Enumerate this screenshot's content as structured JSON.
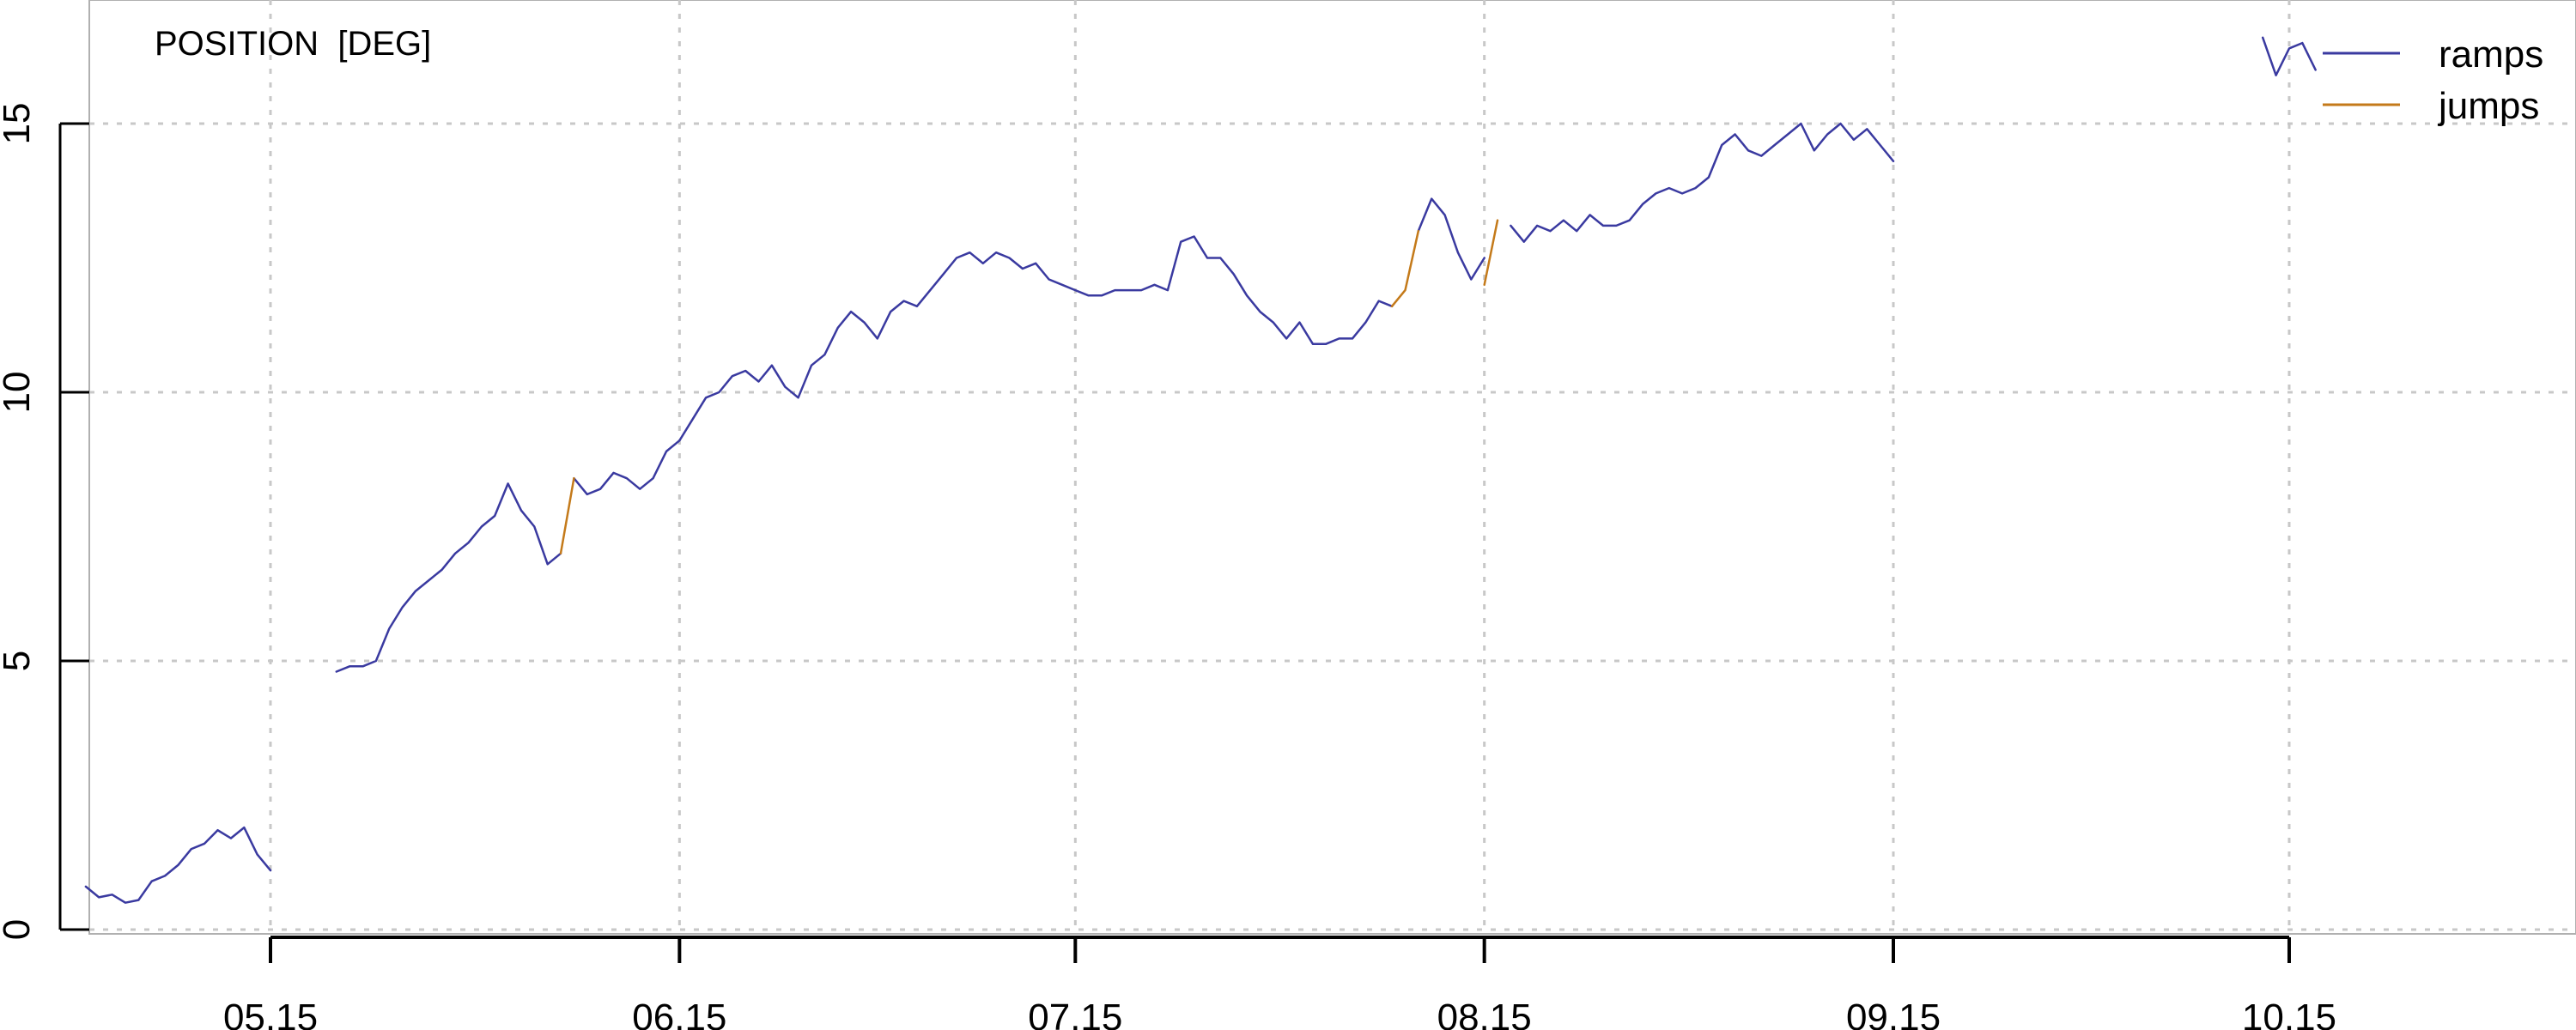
{
  "chart_data": {
    "type": "line",
    "title": "POSITION  [DEG]",
    "xlabel": "",
    "ylabel": "",
    "x_axis": {
      "type": "date",
      "range": [
        "2015-04-20",
        "2015-11-15"
      ],
      "ticks": [
        {
          "date": "2015-05-15",
          "label": "05.15"
        },
        {
          "date": "2015-06-15",
          "label": "06.15"
        },
        {
          "date": "2015-07-15",
          "label": "07.15"
        },
        {
          "date": "2015-08-15",
          "label": "08.15"
        },
        {
          "date": "2015-09-15",
          "label": "09.15"
        },
        {
          "date": "2015-10-15",
          "label": "10.15"
        }
      ]
    },
    "ylim": [
      0,
      17.2
    ],
    "y_ticks": [
      0,
      5,
      10,
      15
    ],
    "grid": true,
    "legend_position": "top-right",
    "series": [
      {
        "name": "ramps",
        "color": "#3a3aa0",
        "segments": [
          [
            [
              "2015-05-01",
              0.8
            ],
            [
              "2015-05-02",
              0.6
            ],
            [
              "2015-05-03",
              0.65
            ],
            [
              "2015-05-04",
              0.5
            ],
            [
              "2015-05-05",
              0.55
            ],
            [
              "2015-05-06",
              0.9
            ],
            [
              "2015-05-07",
              1.0
            ],
            [
              "2015-05-08",
              1.2
            ],
            [
              "2015-05-09",
              1.5
            ],
            [
              "2015-05-10",
              1.6
            ],
            [
              "2015-05-11",
              1.85
            ],
            [
              "2015-05-12",
              1.7
            ],
            [
              "2015-05-13",
              1.9
            ],
            [
              "2015-05-14",
              1.4
            ],
            [
              "2015-05-15",
              1.1
            ]
          ],
          [
            [
              "2015-05-20",
              4.8
            ],
            [
              "2015-05-21",
              4.9
            ],
            [
              "2015-05-22",
              4.9
            ],
            [
              "2015-05-23",
              5.0
            ],
            [
              "2015-05-24",
              5.6
            ],
            [
              "2015-05-25",
              6.0
            ],
            [
              "2015-05-26",
              6.3
            ],
            [
              "2015-05-27",
              6.5
            ],
            [
              "2015-05-28",
              6.7
            ],
            [
              "2015-05-29",
              7.0
            ],
            [
              "2015-05-30",
              7.2
            ],
            [
              "2015-05-31",
              7.5
            ],
            [
              "2015-06-01",
              7.7
            ],
            [
              "2015-06-02",
              8.3
            ],
            [
              "2015-06-03",
              7.8
            ],
            [
              "2015-06-04",
              7.5
            ],
            [
              "2015-06-05",
              6.8
            ],
            [
              "2015-06-06",
              7.0
            ]
          ],
          [
            [
              "2015-06-07",
              8.4
            ],
            [
              "2015-06-08",
              8.1
            ],
            [
              "2015-06-09",
              8.2
            ],
            [
              "2015-06-10",
              8.5
            ],
            [
              "2015-06-11",
              8.4
            ],
            [
              "2015-06-12",
              8.2
            ],
            [
              "2015-06-13",
              8.4
            ],
            [
              "2015-06-14",
              8.9
            ],
            [
              "2015-06-15",
              9.1
            ],
            [
              "2015-06-16",
              9.5
            ],
            [
              "2015-06-17",
              9.9
            ],
            [
              "2015-06-18",
              10.0
            ],
            [
              "2015-06-19",
              10.3
            ],
            [
              "2015-06-20",
              10.4
            ],
            [
              "2015-06-21",
              10.2
            ],
            [
              "2015-06-22",
              10.5
            ],
            [
              "2015-06-23",
              10.1
            ],
            [
              "2015-06-24",
              9.9
            ],
            [
              "2015-06-25",
              10.5
            ],
            [
              "2015-06-26",
              10.7
            ],
            [
              "2015-06-27",
              11.2
            ],
            [
              "2015-06-28",
              11.5
            ],
            [
              "2015-06-29",
              11.3
            ],
            [
              "2015-06-30",
              11.0
            ],
            [
              "2015-07-01",
              11.5
            ],
            [
              "2015-07-02",
              11.7
            ],
            [
              "2015-07-03",
              11.6
            ],
            [
              "2015-07-04",
              11.9
            ],
            [
              "2015-07-05",
              12.2
            ],
            [
              "2015-07-06",
              12.5
            ],
            [
              "2015-07-07",
              12.6
            ],
            [
              "2015-07-08",
              12.4
            ],
            [
              "2015-07-09",
              12.6
            ],
            [
              "2015-07-10",
              12.5
            ],
            [
              "2015-07-11",
              12.3
            ],
            [
              "2015-07-12",
              12.4
            ],
            [
              "2015-07-13",
              12.1
            ],
            [
              "2015-07-14",
              12.0
            ],
            [
              "2015-07-15",
              11.9
            ],
            [
              "2015-07-16",
              11.8
            ],
            [
              "2015-07-17",
              11.8
            ],
            [
              "2015-07-18",
              11.9
            ],
            [
              "2015-07-19",
              11.9
            ],
            [
              "2015-07-20",
              11.9
            ],
            [
              "2015-07-21",
              12.0
            ],
            [
              "2015-07-22",
              11.9
            ],
            [
              "2015-07-23",
              12.8
            ],
            [
              "2015-07-24",
              12.9
            ],
            [
              "2015-07-25",
              12.5
            ],
            [
              "2015-07-26",
              12.5
            ],
            [
              "2015-07-27",
              12.2
            ],
            [
              "2015-07-28",
              11.8
            ],
            [
              "2015-07-29",
              11.5
            ],
            [
              "2015-07-30",
              11.3
            ],
            [
              "2015-07-31",
              11.0
            ],
            [
              "2015-08-01",
              11.3
            ],
            [
              "2015-08-02",
              10.9
            ],
            [
              "2015-08-03",
              10.9
            ],
            [
              "2015-08-04",
              11.0
            ],
            [
              "2015-08-05",
              11.0
            ],
            [
              "2015-08-06",
              11.3
            ],
            [
              "2015-08-07",
              11.7
            ],
            [
              "2015-08-08",
              11.6
            ]
          ],
          [
            [
              "2015-08-10",
              13.0
            ],
            [
              "2015-08-11",
              13.6
            ],
            [
              "2015-08-12",
              13.3
            ],
            [
              "2015-08-13",
              12.6
            ],
            [
              "2015-08-14",
              12.1
            ],
            [
              "2015-08-15",
              12.5
            ]
          ],
          [
            [
              "2015-08-17",
              13.1
            ],
            [
              "2015-08-18",
              12.8
            ],
            [
              "2015-08-19",
              13.1
            ],
            [
              "2015-08-20",
              13.0
            ],
            [
              "2015-08-21",
              13.2
            ],
            [
              "2015-08-22",
              13.0
            ],
            [
              "2015-08-23",
              13.3
            ],
            [
              "2015-08-24",
              13.1
            ],
            [
              "2015-08-25",
              13.1
            ],
            [
              "2015-08-26",
              13.2
            ],
            [
              "2015-08-27",
              13.5
            ],
            [
              "2015-08-28",
              13.7
            ],
            [
              "2015-08-29",
              13.8
            ],
            [
              "2015-08-30",
              13.7
            ],
            [
              "2015-08-31",
              13.8
            ],
            [
              "2015-09-01",
              14.0
            ],
            [
              "2015-09-02",
              14.6
            ],
            [
              "2015-09-03",
              14.8
            ],
            [
              "2015-09-04",
              14.5
            ],
            [
              "2015-09-05",
              14.4
            ],
            [
              "2015-09-06",
              14.6
            ],
            [
              "2015-09-07",
              14.8
            ],
            [
              "2015-09-08",
              15.0
            ],
            [
              "2015-09-09",
              14.5
            ],
            [
              "2015-09-10",
              14.8
            ],
            [
              "2015-09-11",
              15.0
            ],
            [
              "2015-09-12",
              14.7
            ],
            [
              "2015-09-13",
              14.9
            ],
            [
              "2015-09-14",
              14.6
            ],
            [
              "2015-09-15",
              14.3
            ]
          ],
          [
            [
              "2015-10-13",
              16.6
            ],
            [
              "2015-10-14",
              15.9
            ],
            [
              "2015-10-15",
              16.4
            ],
            [
              "2015-10-16",
              16.5
            ],
            [
              "2015-10-17",
              16.0
            ]
          ]
        ]
      },
      {
        "name": "jumps",
        "color": "#c47a1a",
        "segments": [
          [
            [
              "2015-06-06",
              7.0
            ],
            [
              "2015-06-07",
              8.4
            ]
          ],
          [
            [
              "2015-08-08",
              11.6
            ],
            [
              "2015-08-09",
              11.9
            ],
            [
              "2015-08-10",
              13.0
            ]
          ],
          [
            [
              "2015-08-15",
              12.0
            ],
            [
              "2015-08-16",
              13.2
            ]
          ]
        ]
      }
    ]
  }
}
